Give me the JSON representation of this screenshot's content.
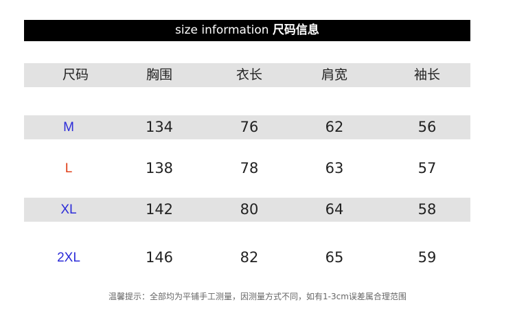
{
  "title": {
    "en": "size information",
    "zh": "尺码信息"
  },
  "headers": [
    "尺码",
    "胸围",
    "衣长",
    "肩宽",
    "袖长"
  ],
  "rows": [
    {
      "size": "M",
      "color": "#2b2bd8",
      "values": [
        "134",
        "76",
        "62",
        "56"
      ]
    },
    {
      "size": "L",
      "color": "#e0401a",
      "values": [
        "138",
        "78",
        "63",
        "57"
      ]
    },
    {
      "size": "XL",
      "color": "#2b2bd8",
      "values": [
        "142",
        "80",
        "64",
        "58"
      ]
    },
    {
      "size": "2XL",
      "color": "#2b2bd8",
      "values": [
        "146",
        "82",
        "65",
        "59"
      ]
    }
  ],
  "note": "温馨提示：全部均为平铺手工测量，因测量方式不同，如有1-3cm误差属合理范围"
}
